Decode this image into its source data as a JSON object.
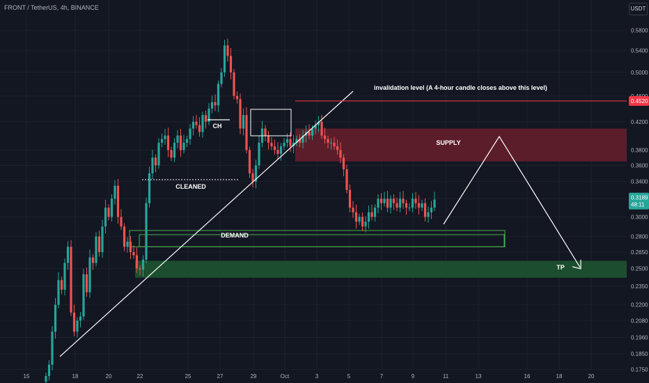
{
  "header": {
    "symbol": "FRONT / TetherUS, 4h, BINANCE"
  },
  "currency": "USDT",
  "price_badges": {
    "invalidation": "0.4520",
    "last_price": "0.3189",
    "countdown": "48:11"
  },
  "annotations": {
    "invalidation": "invalidation level (A 4-hour candle closes above this level)",
    "supply": "SUPPLY",
    "demand": "DEMAND",
    "tp": "TP",
    "ch": "CH",
    "cleaned": "CLEANED"
  },
  "colors": {
    "background": "#131722",
    "up": "#26a69a",
    "down": "#ef5350",
    "supply_zone": "#5c1d2a",
    "demand_outline": "#4caf50",
    "tp_zone": "#1b4d2e",
    "invalidation_line": "#f23645",
    "last_price_badge": "#26a69a"
  },
  "chart_data": {
    "type": "candlestick",
    "y_scale": "log",
    "ylim": [
      0.171,
      0.63
    ],
    "y_ticks": [
      "0.5800",
      "0.5400",
      "0.5000",
      "0.4600",
      "0.4200",
      "0.3800",
      "0.3600",
      "0.3400",
      "0.3200",
      "0.3000",
      "0.2800",
      "0.2650",
      "0.2500",
      "0.2350",
      "0.2200",
      "0.2080",
      "0.1960",
      "0.1850",
      "0.1750"
    ],
    "x_ticks": [
      "15",
      "18",
      "20",
      "22",
      "25",
      "27",
      "29",
      "Oct",
      "3",
      "5",
      "7",
      "9",
      "11",
      "13",
      "16",
      "18",
      "20"
    ],
    "levels": {
      "invalidation": 0.452,
      "last_price": 0.3189
    },
    "zones": {
      "supply": [
        0.365,
        0.41
      ],
      "demand": [
        0.27,
        0.286
      ],
      "tp": [
        0.242,
        0.257
      ]
    },
    "candle_closes": [
      0.171,
      0.178,
      0.2,
      0.22,
      0.24,
      0.232,
      0.255,
      0.27,
      0.214,
      0.2,
      0.208,
      0.211,
      0.245,
      0.23,
      0.26,
      0.255,
      0.28,
      0.265,
      0.29,
      0.31,
      0.3,
      0.32,
      0.335,
      0.3,
      0.29,
      0.27,
      0.275,
      0.265,
      0.262,
      0.25,
      0.249,
      0.258,
      0.315,
      0.35,
      0.37,
      0.36,
      0.39,
      0.395,
      0.4,
      0.38,
      0.37,
      0.39,
      0.4,
      0.38,
      0.39,
      0.395,
      0.41,
      0.42,
      0.415,
      0.405,
      0.43,
      0.42,
      0.44,
      0.45,
      0.445,
      0.48,
      0.5,
      0.55,
      0.53,
      0.5,
      0.46,
      0.455,
      0.41,
      0.43,
      0.38,
      0.35,
      0.34,
      0.36,
      0.39,
      0.41,
      0.4,
      0.39,
      0.385,
      0.38,
      0.375,
      0.385,
      0.39,
      0.395,
      0.385,
      0.39,
      0.395,
      0.39,
      0.4,
      0.405,
      0.4,
      0.41,
      0.415,
      0.42,
      0.4,
      0.395,
      0.39,
      0.39,
      0.385,
      0.38,
      0.37,
      0.355,
      0.33,
      0.31,
      0.305,
      0.295,
      0.3,
      0.29,
      0.295,
      0.305,
      0.3,
      0.31,
      0.32,
      0.315,
      0.32,
      0.31,
      0.32,
      0.315,
      0.31,
      0.32,
      0.315,
      0.31,
      0.31,
      0.32,
      0.315,
      0.31,
      0.315,
      0.3,
      0.305,
      0.31,
      0.3189
    ]
  }
}
